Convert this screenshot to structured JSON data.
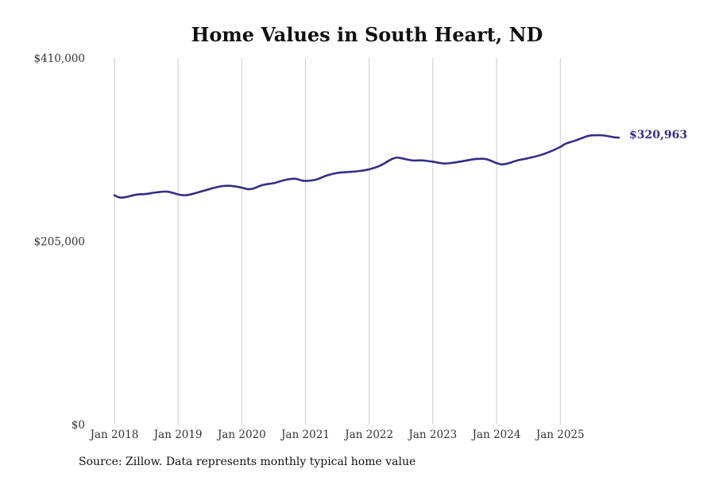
{
  "chart_data": {
    "type": "line",
    "title": "Home Values in South Heart, ND",
    "xlabel": "",
    "ylabel": "",
    "ylim": [
      0,
      410000
    ],
    "y_ticks": [
      {
        "value": 0,
        "label": "$0"
      },
      {
        "value": 205000,
        "label": "$205,000"
      },
      {
        "value": 410000,
        "label": "$410,000"
      }
    ],
    "x_ticks": [
      {
        "value": 2018.0,
        "label": "Jan 2018"
      },
      {
        "value": 2019.0,
        "label": "Jan 2019"
      },
      {
        "value": 2020.0,
        "label": "Jan 2020"
      },
      {
        "value": 2021.0,
        "label": "Jan 2021"
      },
      {
        "value": 2022.0,
        "label": "Jan 2022"
      },
      {
        "value": 2023.0,
        "label": "Jan 2023"
      },
      {
        "value": 2024.0,
        "label": "Jan 2024"
      },
      {
        "value": 2025.0,
        "label": "Jan 2025"
      }
    ],
    "xlim": [
      2018.0,
      2025.92
    ],
    "grid": "vertical",
    "series": [
      {
        "name": "Typical home value",
        "color": "#342d85",
        "end_label": "$320,963",
        "points": [
          [
            2018.0,
            256500
          ],
          [
            2018.08,
            254000
          ],
          [
            2018.17,
            254300
          ],
          [
            2018.33,
            257000
          ],
          [
            2018.5,
            258000
          ],
          [
            2018.67,
            259800
          ],
          [
            2018.83,
            260500
          ],
          [
            2019.0,
            257500
          ],
          [
            2019.08,
            256500
          ],
          [
            2019.17,
            257000
          ],
          [
            2019.33,
            260000
          ],
          [
            2019.5,
            263500
          ],
          [
            2019.67,
            266500
          ],
          [
            2019.83,
            267000
          ],
          [
            2020.0,
            265000
          ],
          [
            2020.08,
            263500
          ],
          [
            2020.17,
            263800
          ],
          [
            2020.33,
            268000
          ],
          [
            2020.5,
            270000
          ],
          [
            2020.67,
            273500
          ],
          [
            2020.83,
            275000
          ],
          [
            2020.92,
            273500
          ],
          [
            2021.0,
            272500
          ],
          [
            2021.17,
            274000
          ],
          [
            2021.33,
            278500
          ],
          [
            2021.5,
            281500
          ],
          [
            2021.67,
            282500
          ],
          [
            2021.83,
            283500
          ],
          [
            2022.0,
            285500
          ],
          [
            2022.17,
            289500
          ],
          [
            2022.33,
            296000
          ],
          [
            2022.42,
            298500
          ],
          [
            2022.5,
            298000
          ],
          [
            2022.67,
            295500
          ],
          [
            2022.83,
            295500
          ],
          [
            2023.0,
            294000
          ],
          [
            2023.17,
            292000
          ],
          [
            2023.33,
            293000
          ],
          [
            2023.5,
            295000
          ],
          [
            2023.67,
            297000
          ],
          [
            2023.83,
            297000
          ],
          [
            2024.0,
            292500
          ],
          [
            2024.08,
            291000
          ],
          [
            2024.17,
            292000
          ],
          [
            2024.33,
            295500
          ],
          [
            2024.5,
            298000
          ],
          [
            2024.67,
            301000
          ],
          [
            2024.83,
            305000
          ],
          [
            2025.0,
            310500
          ],
          [
            2025.08,
            314000
          ],
          [
            2025.25,
            318000
          ],
          [
            2025.42,
            322500
          ],
          [
            2025.5,
            323500
          ],
          [
            2025.67,
            323500
          ],
          [
            2025.83,
            321500
          ],
          [
            2025.92,
            320963
          ]
        ]
      }
    ]
  },
  "footer": {
    "source": "Source: Zillow. Data represents monthly typical home value"
  },
  "colors": {
    "line": "#342d85",
    "grid": "#c8c8c8",
    "text": "#333333"
  }
}
